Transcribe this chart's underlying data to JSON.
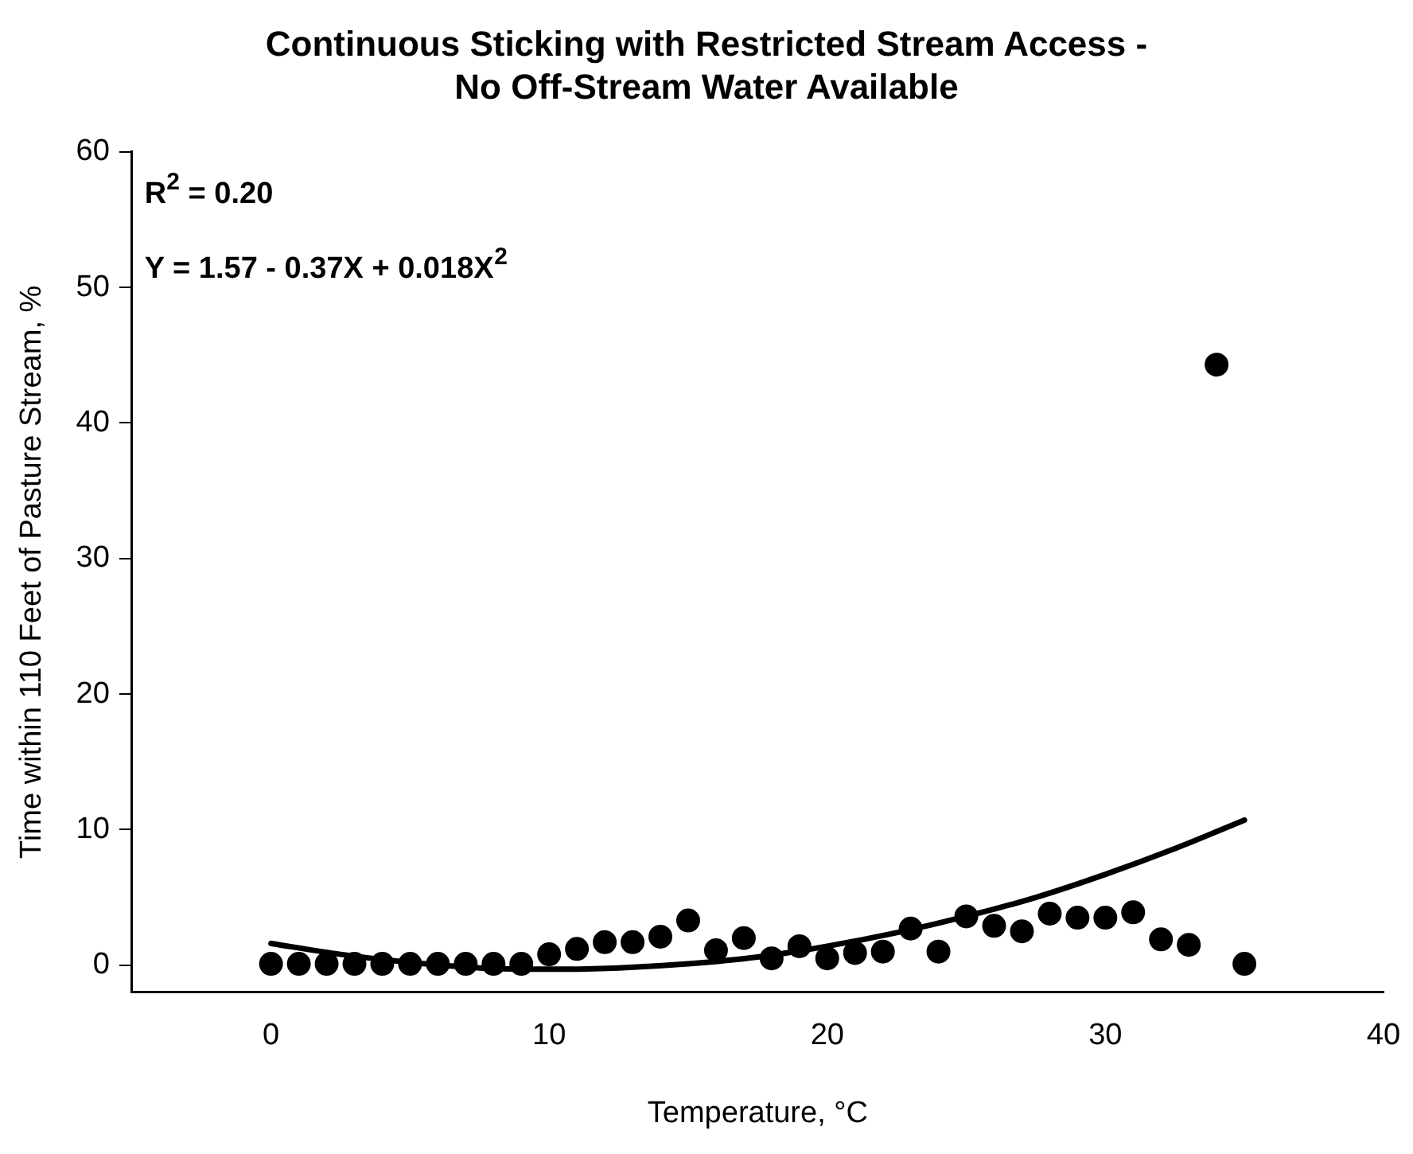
{
  "chart_data": {
    "type": "scatter",
    "title": "Continuous Sticking with Restricted Stream Access - No Off-Stream Water Available",
    "xlabel": "Temperature, °C",
    "ylabel": "Time within 110 Feet of Pasture Stream, %",
    "x": [
      0,
      1,
      2,
      3,
      4,
      5,
      6,
      7,
      8,
      9,
      10,
      11,
      12,
      13,
      14,
      15,
      16,
      17,
      18,
      19,
      20,
      21,
      22,
      23,
      24,
      25,
      26,
      27,
      28,
      29,
      30,
      31,
      32,
      33,
      34,
      35
    ],
    "series": [
      {
        "color": "#000000",
        "marker": "circle",
        "values": [
          0.1,
          0.1,
          0.1,
          0.1,
          0.1,
          0.1,
          0.1,
          0.1,
          0.1,
          0.1,
          0.8,
          1.2,
          1.7,
          1.7,
          2.1,
          3.3,
          1.1,
          2.0,
          0.5,
          1.4,
          0.5,
          0.9,
          1.0,
          2.7,
          1.0,
          3.6,
          2.9,
          2.5,
          3.8,
          3.5,
          3.5,
          3.9,
          1.9,
          1.5,
          44.3,
          0.1
        ]
      },
      {
        "type": "line",
        "color": "#000000",
        "marker": "none",
        "line_style": "solid",
        "x": [
          0,
          2.5,
          5,
          7.5,
          10,
          12.5,
          15,
          17.5,
          20,
          22.5,
          25,
          27.5,
          30,
          32.5,
          35
        ],
        "values": [
          1.6,
          0.8,
          0.2,
          -0.2,
          -0.3,
          -0.2,
          0.1,
          0.6,
          1.4,
          2.4,
          3.6,
          5.0,
          6.7,
          8.6,
          10.7
        ]
      }
    ],
    "xlim": [
      -5,
      40
    ],
    "xticks": [
      0,
      10,
      20,
      30,
      40
    ],
    "ylim": [
      -2,
      60
    ],
    "yticks": [
      0,
      10,
      20,
      30,
      40,
      50,
      60
    ],
    "grid": false,
    "legend": false,
    "annotations": [
      "R$^{2}$ = 0.20",
      "Y = 1.57 - 0.37X + 0.018X$^{2}$"
    ]
  }
}
